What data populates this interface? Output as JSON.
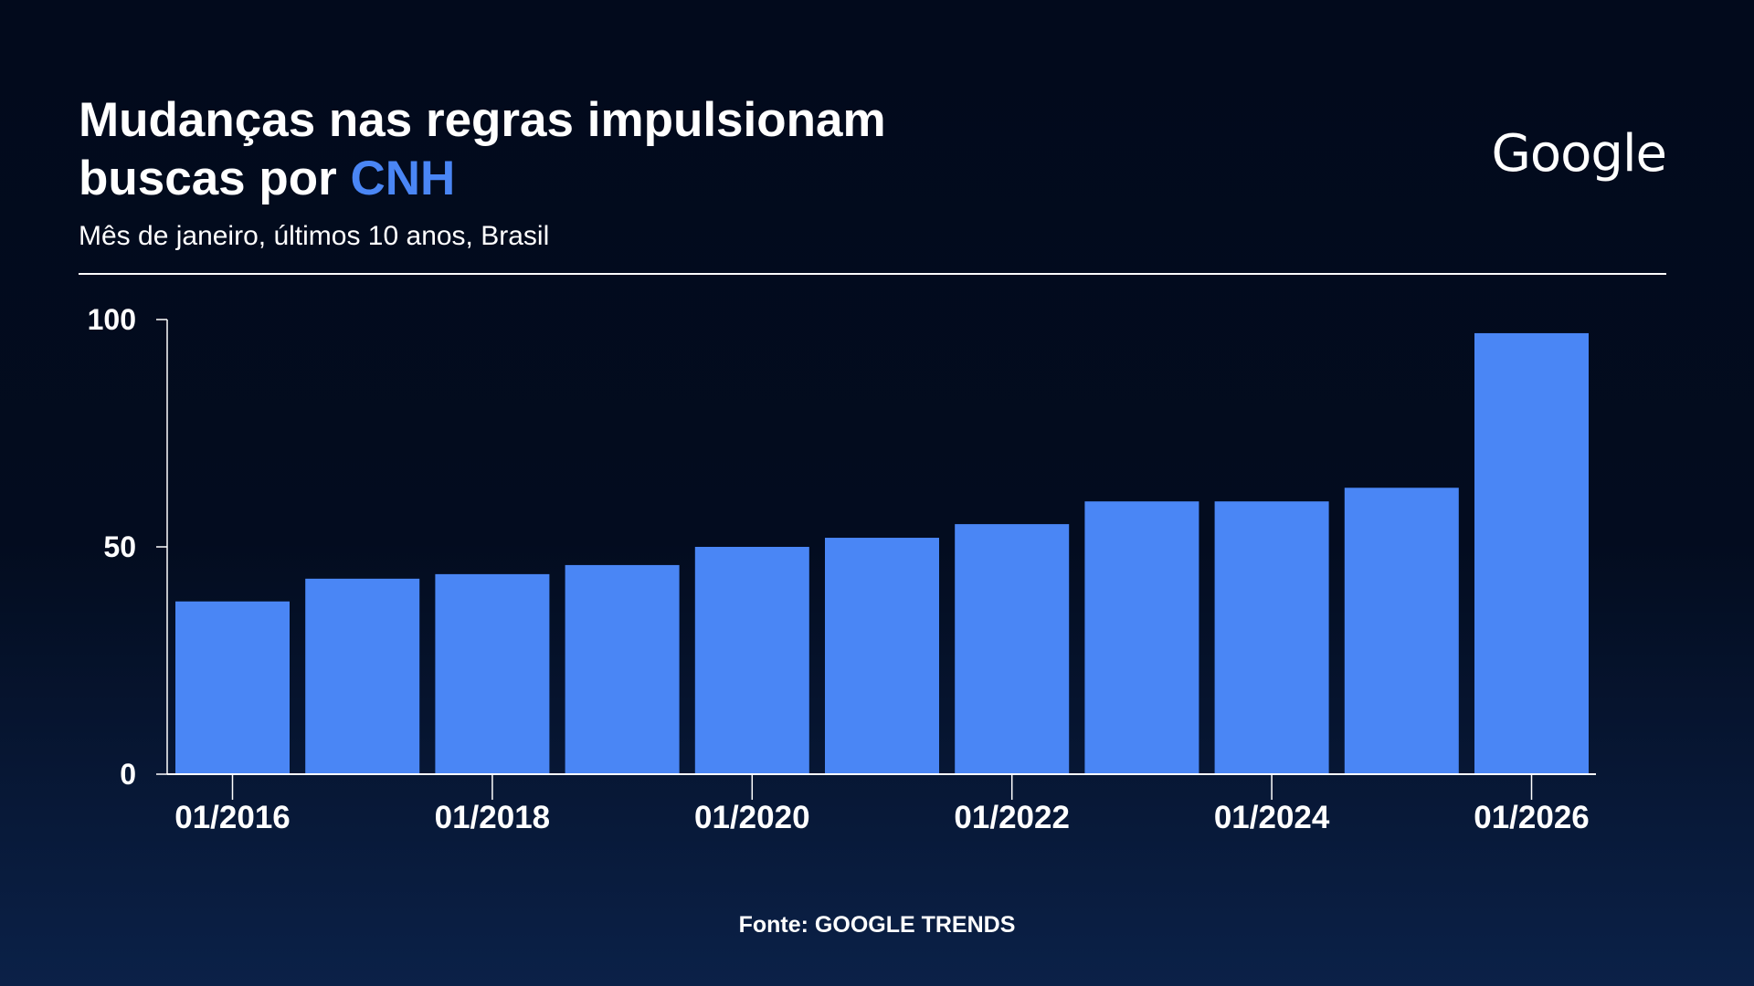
{
  "header": {
    "title_line1": "Mudanças nas regras impulsionam",
    "title_line2_prefix": "buscas por ",
    "title_highlight": "CNH",
    "subtitle": "Mês de janeiro, últimos 10 anos, Brasil",
    "logo": "Google"
  },
  "footer": {
    "source": "Fonte: GOOGLE TRENDS"
  },
  "colors": {
    "bar": "#4a86f5",
    "accent": "#4a86f5",
    "axis": "#ffffff",
    "text": "#ffffff"
  },
  "chart_data": {
    "type": "bar",
    "title": "Mudanças nas regras impulsionam buscas por CNH",
    "subtitle": "Mês de janeiro, últimos 10 anos, Brasil",
    "categories": [
      "01/2016",
      "01/2017",
      "01/2018",
      "01/2019",
      "01/2020",
      "01/2021",
      "01/2022",
      "01/2023",
      "01/2024",
      "01/2025",
      "01/2026"
    ],
    "values": [
      38,
      43,
      44,
      46,
      50,
      52,
      55,
      60,
      60,
      63,
      97
    ],
    "x_tick_labels": [
      "01/2016",
      "01/2018",
      "01/2020",
      "01/2022",
      "01/2024",
      "01/2026"
    ],
    "y_ticks": [
      0,
      50,
      100
    ],
    "ylim": [
      0,
      100
    ],
    "xlabel": "",
    "ylabel": "",
    "grid": false,
    "legend": "none"
  }
}
